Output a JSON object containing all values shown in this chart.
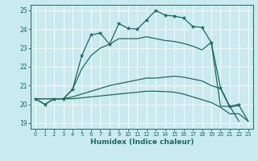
{
  "xlabel": "Humidex (Indice chaleur)",
  "xlim": [
    -0.5,
    23.5
  ],
  "ylim": [
    18.7,
    25.3
  ],
  "yticks": [
    19,
    20,
    21,
    22,
    23,
    24,
    25
  ],
  "xticks": [
    0,
    1,
    2,
    3,
    4,
    5,
    6,
    7,
    8,
    9,
    10,
    11,
    12,
    13,
    14,
    15,
    16,
    17,
    18,
    19,
    20,
    21,
    22,
    23
  ],
  "bg_color": "#c8eaf0",
  "line_color": "#1a6b5a",
  "grid_color": "#ffffff",
  "line1_x": [
    0,
    1,
    2,
    3,
    4,
    5,
    6,
    7,
    8,
    9,
    10,
    11,
    12,
    13,
    14,
    15,
    16,
    17,
    18,
    19,
    20,
    21,
    22
  ],
  "line1_y": [
    20.3,
    20.0,
    20.3,
    20.3,
    20.8,
    22.6,
    23.7,
    23.8,
    23.2,
    24.3,
    24.05,
    24.0,
    24.5,
    25.0,
    24.75,
    24.7,
    24.6,
    24.15,
    24.1,
    23.3,
    20.9,
    19.9,
    20.0
  ],
  "line2_x": [
    0,
    1,
    2,
    3,
    4,
    5,
    6,
    7,
    8,
    9,
    10,
    11,
    12,
    13,
    14,
    15,
    16,
    17,
    18,
    19,
    20,
    21,
    22
  ],
  "line2_y": [
    20.3,
    20.0,
    20.3,
    20.3,
    20.8,
    21.9,
    22.6,
    23.0,
    23.2,
    23.5,
    23.5,
    23.5,
    23.6,
    23.5,
    23.4,
    23.35,
    23.25,
    23.1,
    22.9,
    23.3,
    19.9,
    19.9,
    19.1
  ],
  "line3_x": [
    0,
    1,
    2,
    3,
    4,
    5,
    6,
    7,
    8,
    9,
    10,
    11,
    12,
    13,
    14,
    15,
    16,
    17,
    18,
    19,
    20,
    21,
    22,
    23
  ],
  "line3_y": [
    20.3,
    20.3,
    20.3,
    20.3,
    20.4,
    20.55,
    20.7,
    20.85,
    21.0,
    21.1,
    21.2,
    21.3,
    21.4,
    21.4,
    21.45,
    21.5,
    21.45,
    21.35,
    21.25,
    21.0,
    20.85,
    19.85,
    19.95,
    19.1
  ],
  "line4_x": [
    0,
    1,
    2,
    3,
    4,
    5,
    6,
    7,
    8,
    9,
    10,
    11,
    12,
    13,
    14,
    15,
    16,
    17,
    18,
    19,
    20,
    21,
    22,
    23
  ],
  "line4_y": [
    20.3,
    20.3,
    20.3,
    20.3,
    20.3,
    20.35,
    20.4,
    20.45,
    20.5,
    20.55,
    20.6,
    20.65,
    20.7,
    20.7,
    20.68,
    20.65,
    20.55,
    20.4,
    20.25,
    20.1,
    19.85,
    19.5,
    19.5,
    19.1
  ]
}
